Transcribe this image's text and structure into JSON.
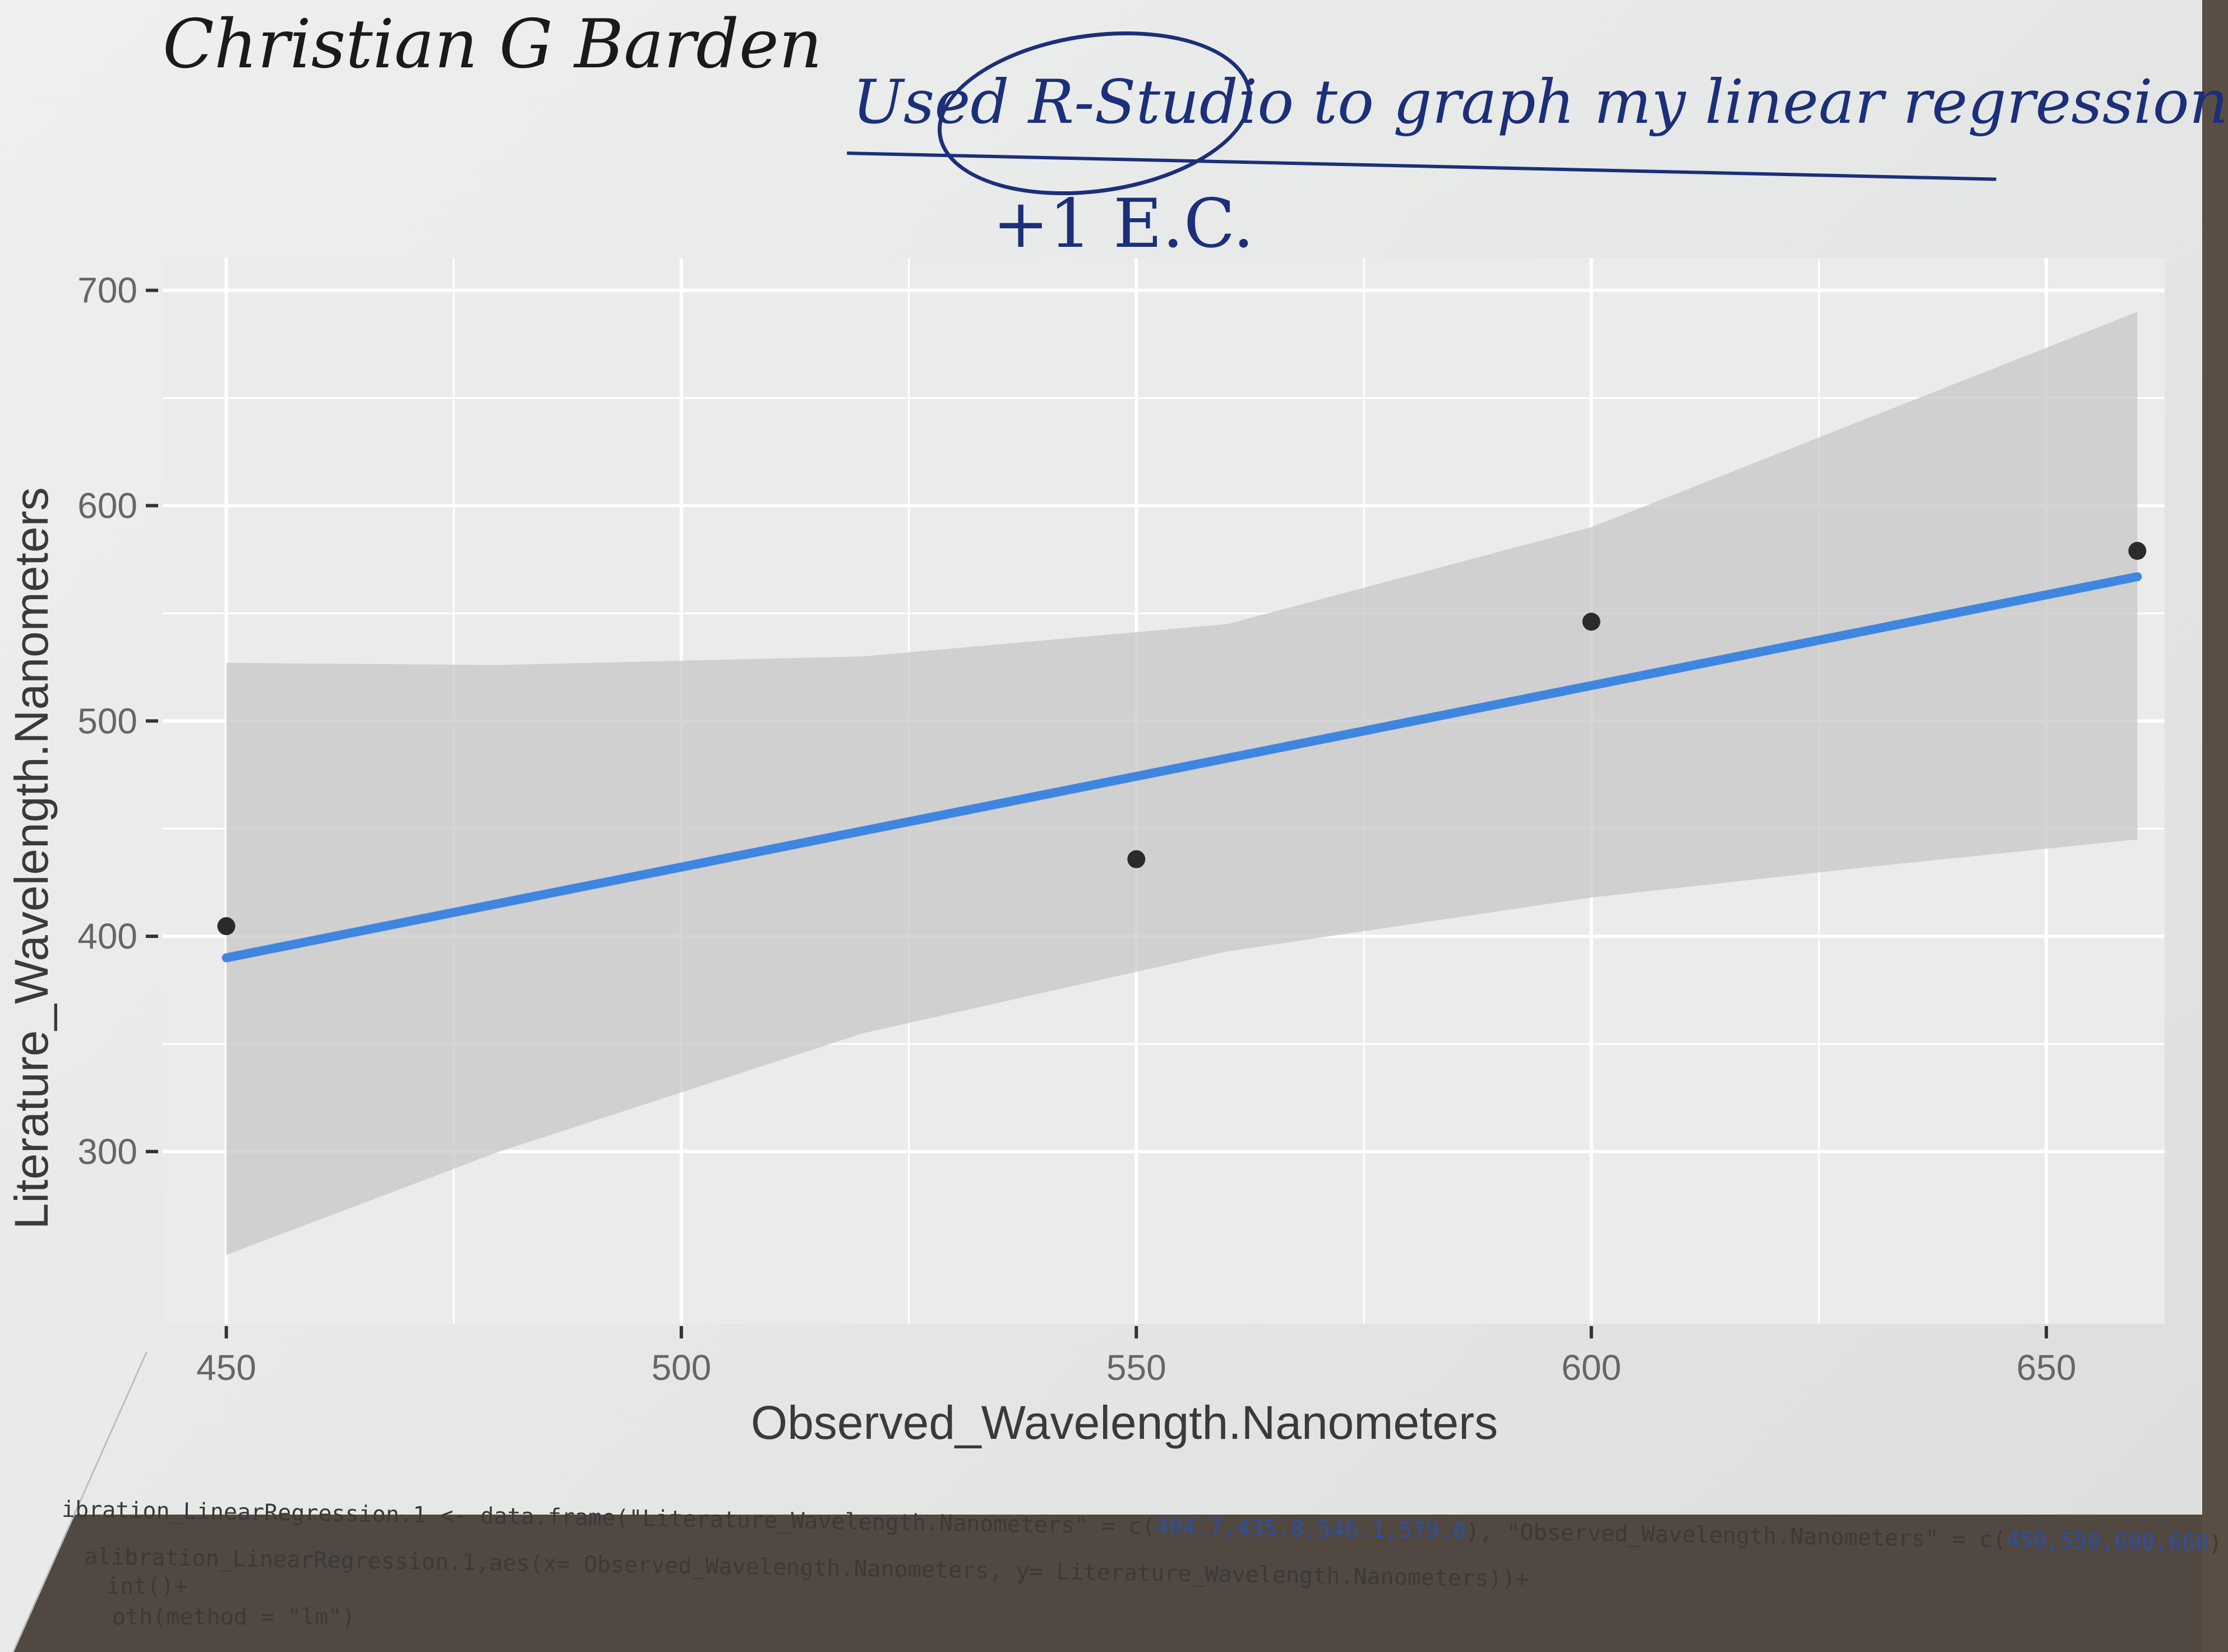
{
  "annotations": {
    "name": "Christian G Barden",
    "note": "Used R-Studio to graph my linear regression",
    "extra_credit": "+1 E.C."
  },
  "colors": {
    "panel_bg": "#ebebeb",
    "gridline": "#ffffff",
    "ribbon": "#c7c7c7",
    "fit_line": "#3f86e0",
    "point": "#2b2b2b",
    "axis_text": "#666666",
    "axis_title": "#3a3a3a"
  },
  "chart_data": {
    "type": "scatter",
    "xlabel": "Observed_Wavelength.Nanometers",
    "ylabel": "Literature_Wavelength.Nanometers",
    "xlim": [
      443,
      663
    ],
    "ylim": [
      220,
      715
    ],
    "x_ticks": [
      450,
      500,
      550,
      600,
      650
    ],
    "y_ticks": [
      300,
      400,
      500,
      600,
      700
    ],
    "x_tick_labels": [
      "450",
      "500",
      "550",
      "600",
      "650"
    ],
    "y_tick_labels": [
      "300",
      "400",
      "500",
      "600",
      "700"
    ],
    "grid": true,
    "legend": "none",
    "points": [
      {
        "x": 450,
        "y": 404.7
      },
      {
        "x": 550,
        "y": 435.8
      },
      {
        "x": 600,
        "y": 546.1
      },
      {
        "x": 660,
        "y": 579.0
      }
    ],
    "fit": {
      "method": "lm",
      "x": [
        450,
        660
      ],
      "y": [
        390,
        567
      ],
      "ci_upper_x": [
        450,
        480,
        520,
        560,
        600,
        630,
        660
      ],
      "ci_upper_y": [
        527,
        526,
        530,
        545,
        590,
        640,
        690
      ],
      "ci_lower_x": [
        450,
        480,
        520,
        560,
        600,
        630,
        660
      ],
      "ci_lower_y": [
        252,
        300,
        355,
        393,
        418,
        432,
        445
      ]
    }
  },
  "code": {
    "line1_prefix": "ibration_LinearRegression.1 <- data.frame(\"Literature_Wavelength.Nanometers\" = c(",
    "line1_values1": "404.7,435.8,546.1,579.0",
    "line1_middle": "), \"Observed_Wavelength.Nanometers\" = c(",
    "line1_values2": "450,550,600,660",
    "line1_suffix": ")",
    "line2": "alibration_LinearRegression.1,aes(x= Observed_Wavelength.Nanometers, y= Literature_Wavelength.Nanometers))+",
    "line3": "int()+",
    "line4": "oth(method = \"lm\")"
  }
}
